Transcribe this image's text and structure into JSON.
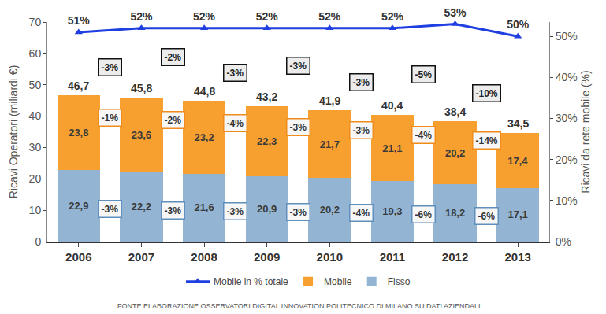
{
  "chart_data": {
    "type": "bar",
    "stacked": true,
    "data_labels": true,
    "grid": false,
    "legend": "bottom",
    "source": "FONTE ELABORAZIONE OSSERVATORI DIGITAL INNOVATION POLITECNICO DI MILANO SU DATI AZIENDALI",
    "y_label": "Ricavi Operatori (miliardi €)",
    "y2_label": "Ricavi da rete mobile (%)",
    "categories": [
      "2006",
      "2007",
      "2008",
      "2009",
      "2010",
      "2011",
      "2012",
      "2013"
    ],
    "ylim": [
      0,
      70
    ],
    "yticks": [
      0,
      10,
      20,
      30,
      40,
      50,
      60,
      70
    ],
    "y2lim": [
      0,
      53.5
    ],
    "y2ticks": [
      {
        "value": 0,
        "label": "0%"
      },
      {
        "value": 10,
        "label": "10%"
      },
      {
        "value": 20,
        "label": "20%"
      },
      {
        "value": 30,
        "label": "30%"
      },
      {
        "value": 40,
        "label": "40%"
      },
      {
        "value": 50,
        "label": "50%"
      }
    ],
    "totals": [
      46.7,
      45.8,
      44.8,
      43.2,
      41.9,
      40.4,
      38.4,
      34.5
    ],
    "total_labels": [
      "46,7",
      "45,8",
      "44,8",
      "43,2",
      "41,9",
      "40,4",
      "38,4",
      "34,5"
    ],
    "total_growth": [
      -3,
      -2,
      -3,
      -3,
      -3,
      -5,
      -10
    ],
    "total_growth_labels": [
      "-3%",
      "-2%",
      "-3%",
      "-3%",
      "-3%",
      "-5%",
      "-10%"
    ],
    "series": [
      {
        "name": "Fisso",
        "type": "bar",
        "color": "#93b5d3",
        "values": [
          22.9,
          22.2,
          21.6,
          20.9,
          20.2,
          19.3,
          18.2,
          17.1
        ],
        "value_labels": [
          "22,9",
          "22,2",
          "21,6",
          "20,9",
          "20,2",
          "19,3",
          "18,2",
          "17,1"
        ],
        "growth": [
          -3,
          -3,
          -3,
          -3,
          -4,
          -6,
          -6
        ],
        "growth_labels": [
          "-3%",
          "-3%",
          "-3%",
          "-3%",
          "-4%",
          "-6%",
          "-6%"
        ]
      },
      {
        "name": "Mobile",
        "type": "bar",
        "color": "#f7a030",
        "values": [
          23.8,
          23.6,
          23.2,
          22.3,
          21.7,
          21.1,
          20.2,
          17.4
        ],
        "value_labels": [
          "23,8",
          "23,6",
          "23,2",
          "22,3",
          "21,7",
          "21,1",
          "20,2",
          "17,4"
        ],
        "growth": [
          -1,
          -2,
          -4,
          -3,
          -3,
          -4,
          -14
        ],
        "growth_labels": [
          "-1%",
          "-2%",
          "-4%",
          "-3%",
          "-3%",
          "-4%",
          "-14%"
        ]
      },
      {
        "name": "Mobile in % totale",
        "type": "line",
        "axis": "y2",
        "color": "#1f3fe0",
        "marker": "triangle-up",
        "line_style": "solid",
        "values": [
          51,
          52,
          52,
          52,
          52,
          52,
          53,
          50
        ],
        "value_labels": [
          "51%",
          "52%",
          "52%",
          "52%",
          "52%",
          "52%",
          "53%",
          "50%"
        ]
      }
    ]
  }
}
